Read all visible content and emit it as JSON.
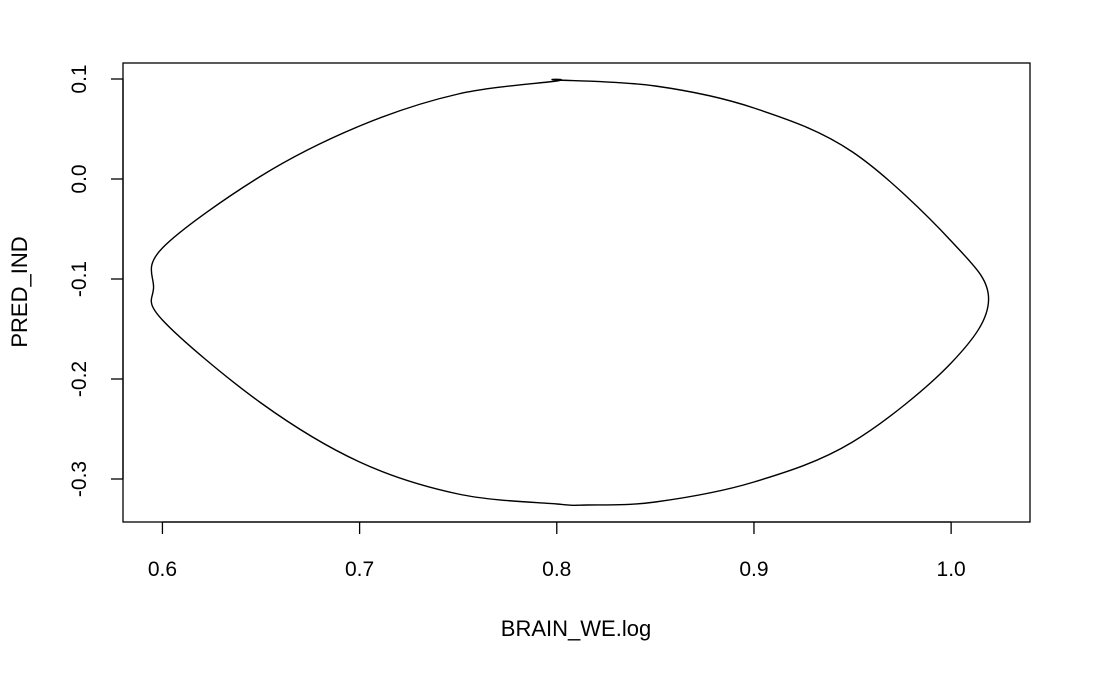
{
  "chart_data": {
    "type": "line",
    "title": "",
    "xlabel": "BRAIN_WE.log",
    "ylabel": "PRED_IND",
    "xlim": [
      0.58,
      1.04
    ],
    "ylim": [
      -0.343,
      0.116
    ],
    "x_ticks": [
      0.6,
      0.7,
      0.8,
      0.9,
      1.0
    ],
    "x_tick_labels": [
      "0.6",
      "0.7",
      "0.8",
      "0.9",
      "1.0"
    ],
    "y_ticks": [
      -0.3,
      -0.2,
      -0.1,
      0.0,
      0.1
    ],
    "y_tick_labels": [
      "-0.3",
      "-0.2",
      "-0.1",
      "0.0",
      "0.1"
    ],
    "grid": false,
    "series": [
      {
        "x": [
          1.019,
          1.0,
          0.95,
          0.9,
          0.85,
          0.8153,
          0.8,
          0.75,
          0.7,
          0.65,
          0.6,
          0.5955,
          0.6,
          0.65,
          0.7,
          0.75,
          0.8,
          0.8,
          0.85,
          0.9,
          0.95,
          1.0,
          1.019
        ],
        "y": [
          -0.12,
          -0.184,
          -0.263,
          -0.303,
          -0.323,
          -0.326,
          -0.325,
          -0.315,
          -0.283,
          -0.224,
          -0.141,
          -0.108,
          -0.069,
          0.003,
          0.053,
          0.085,
          0.098,
          0.099,
          0.093,
          0.071,
          0.027,
          -0.062,
          -0.12
        ],
        "color": "#000000"
      }
    ]
  }
}
